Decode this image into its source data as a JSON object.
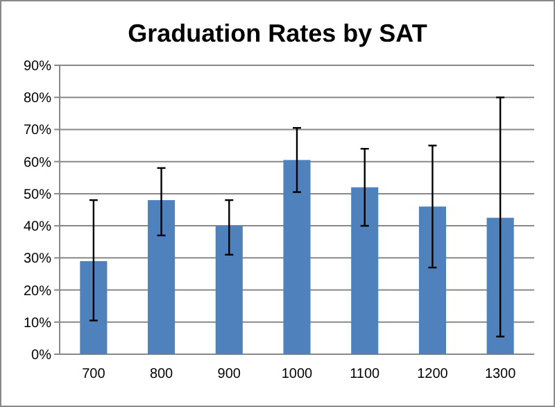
{
  "chart_data": {
    "type": "bar",
    "title": "Graduation Rates by SAT",
    "categories": [
      "700",
      "800",
      "900",
      "1000",
      "1100",
      "1200",
      "1300"
    ],
    "values": [
      29,
      48,
      40,
      60.5,
      52,
      46,
      42.5
    ],
    "errors": [
      [
        10.5,
        48
      ],
      [
        37,
        58
      ],
      [
        31,
        48
      ],
      [
        50.5,
        70.5
      ],
      [
        40,
        64
      ],
      [
        27,
        65
      ],
      [
        5.5,
        80
      ]
    ],
    "color": "#4f81bd",
    "ylim": [
      0,
      90
    ],
    "yticks": [
      {
        "value": 0,
        "label": "0%"
      },
      {
        "value": 10,
        "label": "10%"
      },
      {
        "value": 20,
        "label": "20%"
      },
      {
        "value": 30,
        "label": "30%"
      },
      {
        "value": 40,
        "label": "40%"
      },
      {
        "value": 50,
        "label": "50%"
      },
      {
        "value": 60,
        "label": "60%"
      },
      {
        "value": 70,
        "label": "70%"
      },
      {
        "value": 80,
        "label": "80%"
      },
      {
        "value": 90,
        "label": "90%"
      }
    ],
    "grid": "y"
  }
}
